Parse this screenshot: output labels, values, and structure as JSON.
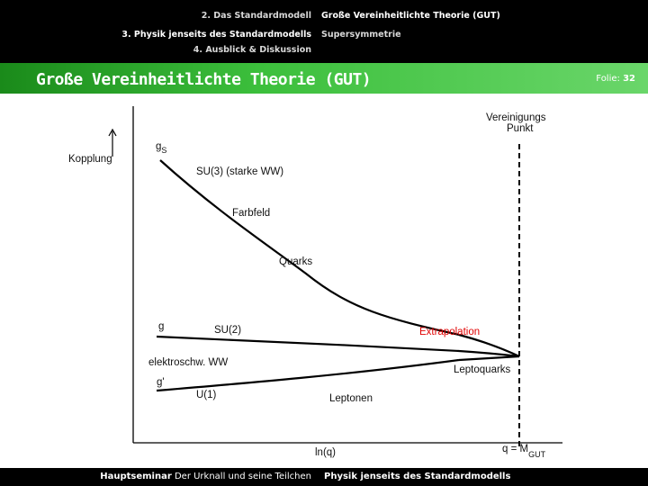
{
  "nav": {
    "left_items": [
      "2. Das Standardmodell",
      "3. Physik jenseits des Standardmodells",
      "4. Ausblick & Diskussion"
    ],
    "right_items": [
      "Große Vereinheitlichte Theorie (GUT)",
      "Supersymmetrie"
    ]
  },
  "slide": {
    "title": "Große Vereinheitlichte Theorie (GUT)",
    "number_label": "Folie:",
    "number": "32"
  },
  "diagram": {
    "y_axis_label": "Kopplung",
    "x_axis_label": "ln(q)",
    "unification_point_line1": "Vereinigungs",
    "unification_point_line2": "Punkt",
    "x_mark": "q = M",
    "x_mark_sub": "GUT",
    "gs": "g",
    "gs_sub": "S",
    "su3": "SU(3) (starke WW)",
    "farbfeld": "Farbfeld",
    "quarks": "Quarks",
    "g": "g",
    "su2": "SU(2)",
    "extrapolation": "Extrapolation",
    "electroweak": "elektroschw. WW",
    "leptoquarks": "Leptoquarks",
    "gprime": "g'",
    "u1": "U(1)",
    "leptonen": "Leptonen",
    "colors": {
      "curves": "#000000",
      "extrapolation": "#e00000",
      "dashed_line": "#000000"
    }
  },
  "footer": {
    "left_bold": "Hauptseminar",
    "left_rest": "Der Urknall und seine Teilchen",
    "right": "Physik jenseits des Standardmodells"
  }
}
